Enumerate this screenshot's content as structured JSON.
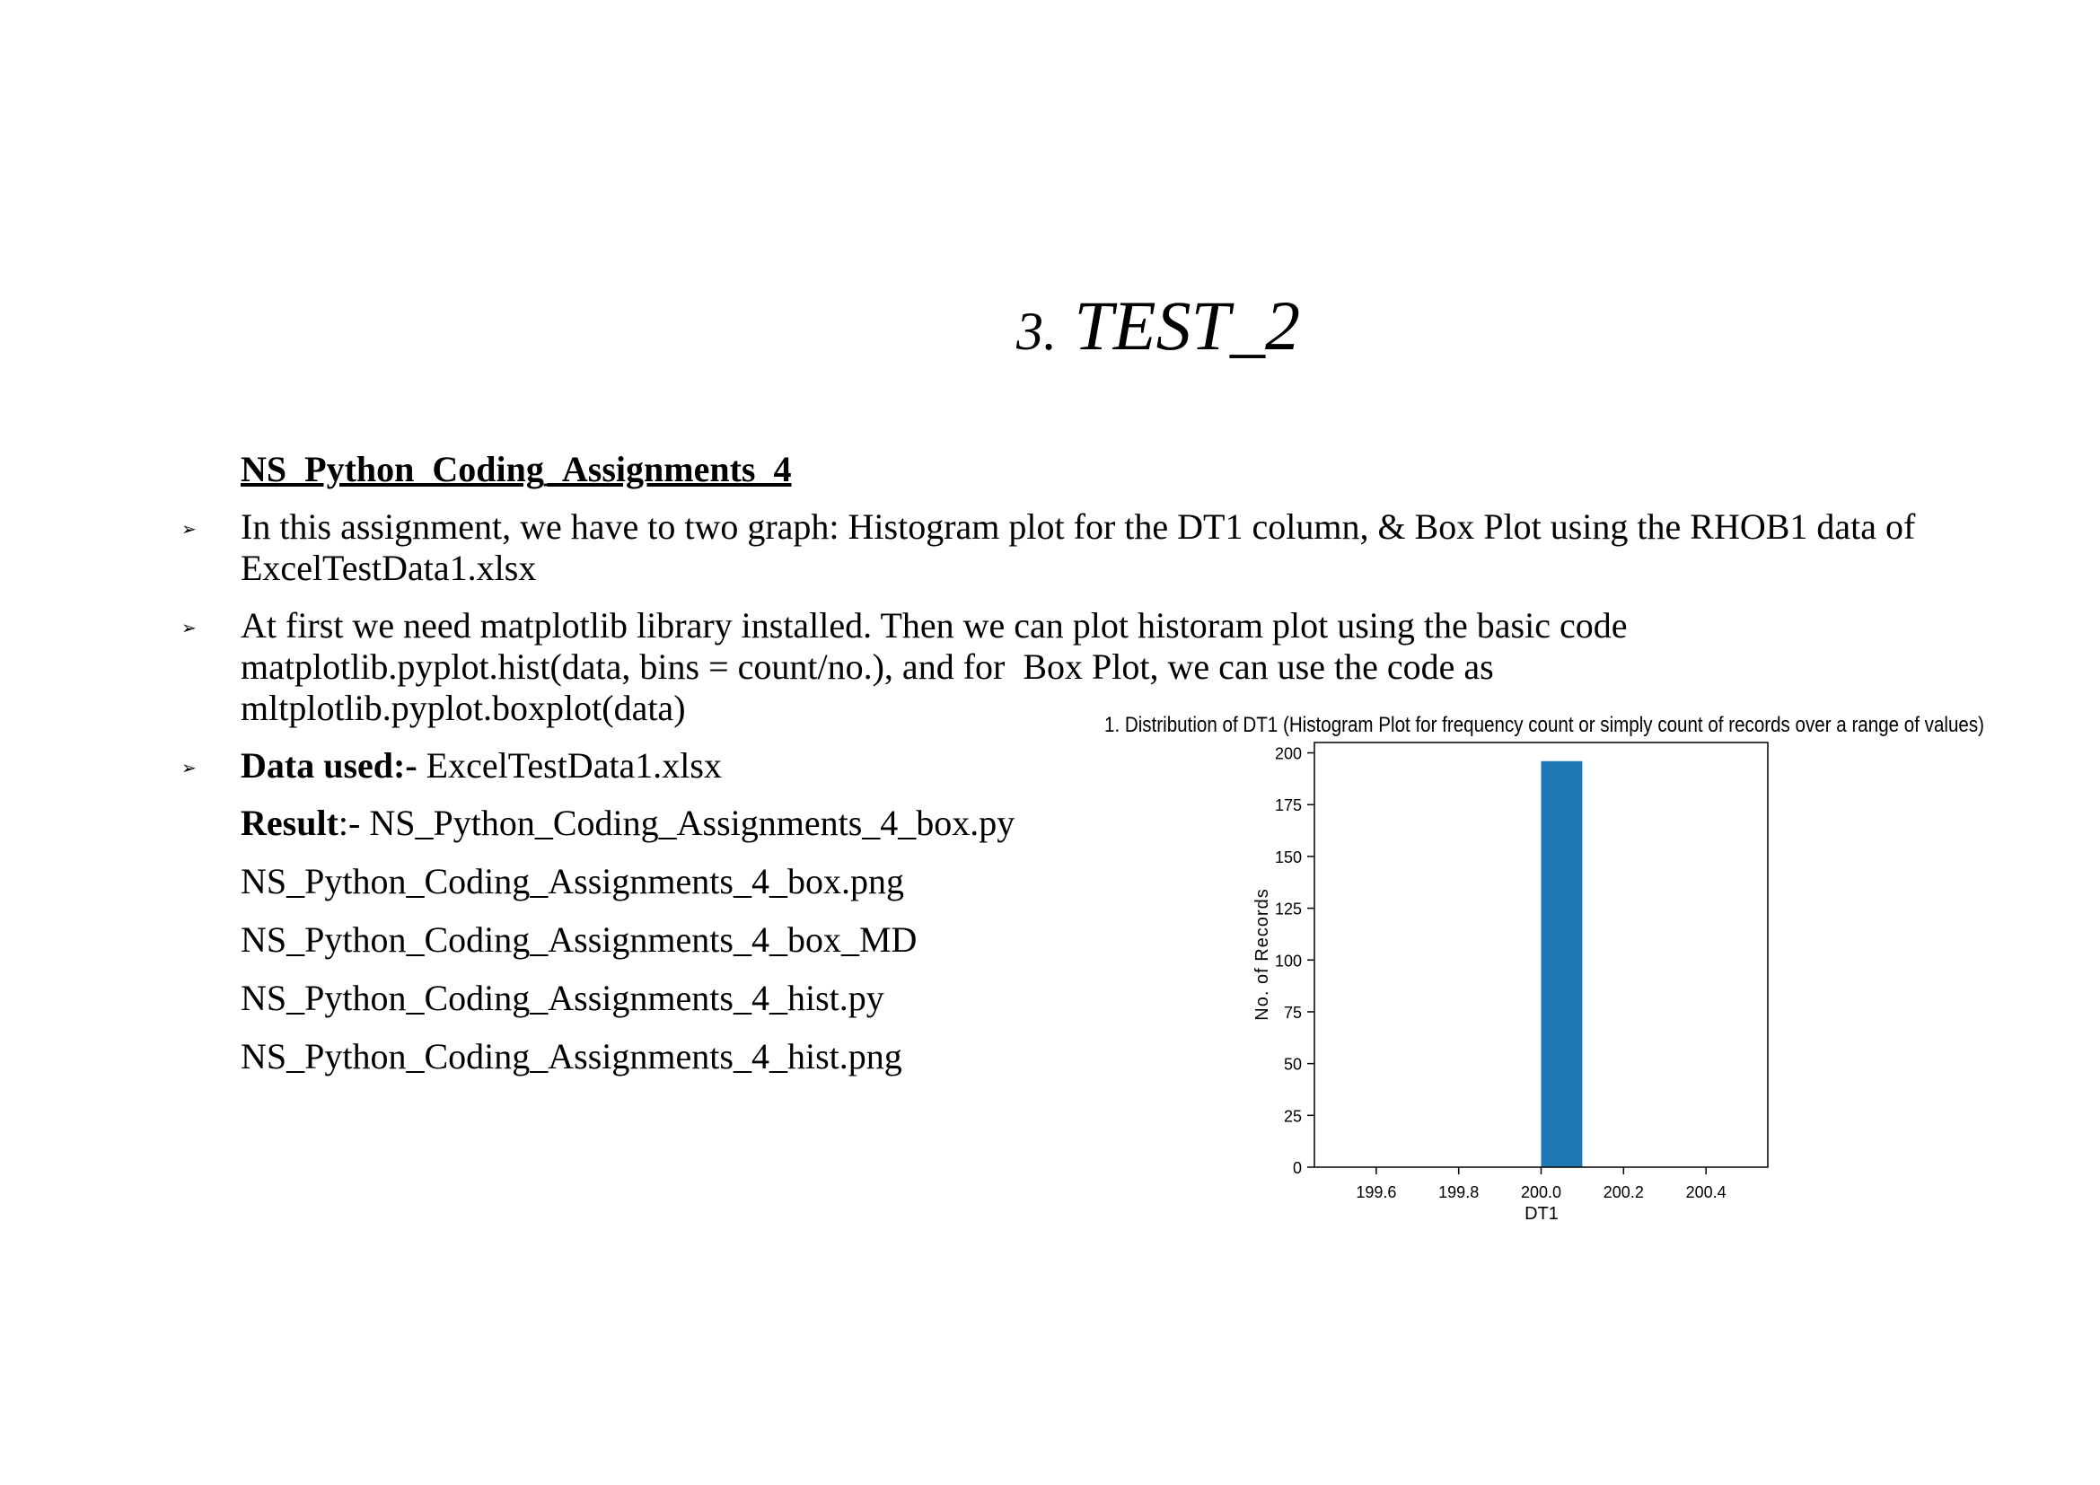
{
  "slide": {
    "title_number": "3.",
    "title_text": "TEST_2"
  },
  "content": {
    "heading": "NS_Python_Coding_Assignments_4",
    "bullets": [
      {
        "text": "In this assignment, we have to two graph: Histogram plot for the DT1 column, & Box Plot using the RHOB1 data of ExcelTestData1.xlsx"
      },
      {
        "line1": "At first we need matplotlib library installed. Then we can plot historam plot using the basic code",
        "line2": "matplotlib.pyplot.hist(data, bins = count/no.), and for  Box Plot, we can use the code as",
        "line3": "mltplotlib.pyplot.boxplot(data)"
      },
      {
        "label": "Data used:-",
        "value": " ExcelTestData1.xlsx"
      }
    ],
    "result": {
      "label": "Result",
      "separator": ":- ",
      "first": "NS_Python_Coding_Assignments_4_box.py",
      "files": [
        "NS_Python_Coding_Assignments_4_box.png",
        "NS_Python_Coding_Assignments_4_box_MD",
        "NS_Python_Coding_Assignments_4_hist.py",
        "NS_Python_Coding_Assignments_4_hist.png"
      ]
    }
  },
  "chart_data": {
    "type": "bar",
    "title": "1. Distribution of DT1 (Histogram Plot for frequency count or simply count of records over a range of values)",
    "xlabel": "DT1",
    "ylabel": "No. of Records",
    "xlim": [
      199.45,
      200.55
    ],
    "ylim": [
      0,
      205
    ],
    "x_ticks": [
      199.6,
      199.8,
      200.0,
      200.2,
      200.4
    ],
    "x_tick_labels": [
      "199.6",
      "199.8",
      "200.0",
      "200.2",
      "200.4"
    ],
    "y_ticks": [
      0,
      25,
      50,
      75,
      100,
      125,
      150,
      175,
      200
    ],
    "y_tick_labels": [
      "0",
      "25",
      "50",
      "75",
      "100",
      "125",
      "150",
      "175",
      "200"
    ],
    "bins": [
      {
        "start": 200.0,
        "end": 200.1,
        "count": 196
      }
    ],
    "bar_color": "#1f77b4",
    "grid": false
  }
}
